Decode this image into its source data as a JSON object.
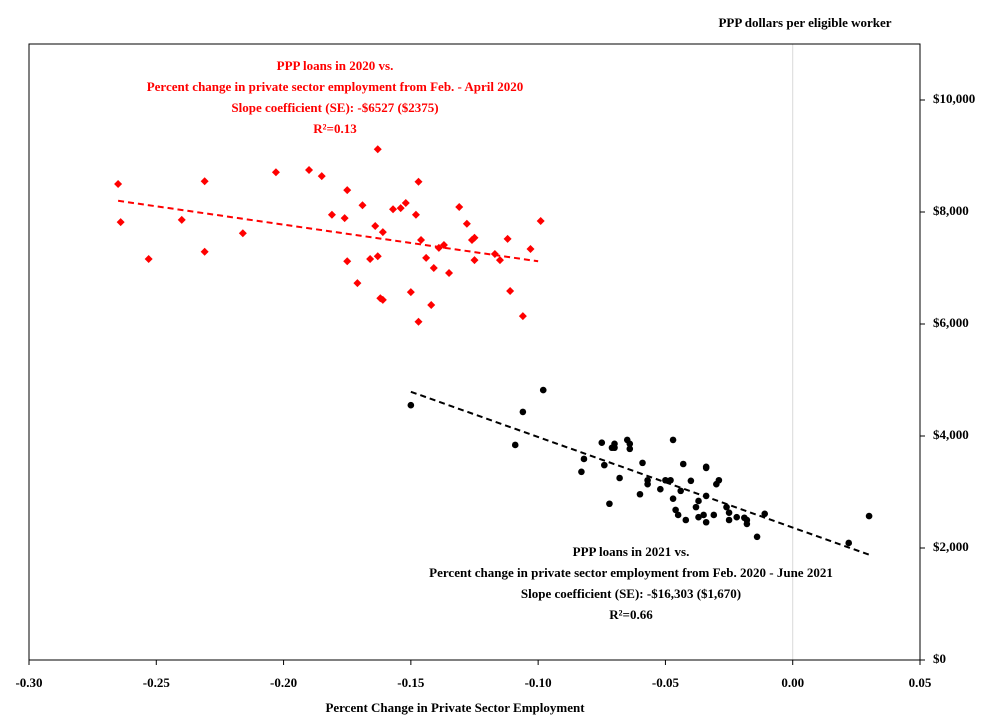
{
  "chart_data": {
    "type": "scatter",
    "title": "PPP dollars per eligible worker",
    "x_label": "Percent Change in Private Sector Employment",
    "xlim": [
      -0.3,
      0.05
    ],
    "xticks": [
      {
        "value": -0.3,
        "label": "-0.30"
      },
      {
        "value": -0.25,
        "label": "-0.25"
      },
      {
        "value": -0.2,
        "label": "-0.20"
      },
      {
        "value": -0.15,
        "label": "-0.15"
      },
      {
        "value": -0.1,
        "label": "-0.10"
      },
      {
        "value": -0.05,
        "label": "-0.05"
      },
      {
        "value": 0,
        "label": "0.00"
      },
      {
        "value": 0.05,
        "label": "0.05"
      }
    ],
    "ylim": [
      0,
      11000
    ],
    "yticks": [
      {
        "value": 0,
        "label": "$0"
      },
      {
        "value": 2000,
        "label": "$2,000"
      },
      {
        "value": 4000,
        "label": "$4,000"
      },
      {
        "value": 6000,
        "label": "$6,000"
      },
      {
        "value": 8000,
        "label": "$8,000"
      },
      {
        "value": 10000,
        "label": "$10,000"
      }
    ],
    "zero_line": true,
    "series": [
      {
        "color": "#ff0000",
        "marker": "diamond",
        "annotation": [
          "PPP loans in 2020 vs.",
          "Percent change in private sector employment from Feb. - April 2020",
          "Slope coefficient (SE): -$6527 ($2375)",
          "R²=0.13"
        ],
        "x": [
          -0.265,
          -0.264,
          -0.253,
          -0.24,
          -0.231,
          -0.231,
          -0.216,
          -0.203,
          -0.19,
          -0.185,
          -0.181,
          -0.176,
          -0.175,
          -0.169,
          -0.175,
          -0.171,
          -0.166,
          -0.163,
          -0.163,
          -0.164,
          -0.162,
          -0.161,
          -0.157,
          -0.154,
          -0.152,
          -0.15,
          -0.161,
          -0.148,
          -0.147,
          -0.146,
          -0.144,
          -0.147,
          -0.142,
          -0.141,
          -0.139,
          -0.137,
          -0.135,
          -0.131,
          -0.128,
          -0.126,
          -0.125,
          -0.117,
          -0.125,
          -0.115,
          -0.111,
          -0.112,
          -0.106,
          -0.103,
          -0.099
        ],
        "y": [
          8500,
          7820,
          7160,
          7860,
          8550,
          7290,
          7620,
          8710,
          8750,
          8640,
          7950,
          7890,
          8390,
          8120,
          7120,
          6730,
          7160,
          9120,
          7210,
          7750,
          6460,
          6430,
          8050,
          8070,
          8160,
          6570,
          7640,
          7950,
          8540,
          7500,
          7180,
          6040,
          6340,
          7000,
          7360,
          7410,
          6910,
          8090,
          7790,
          7500,
          7540,
          7250,
          7140,
          7140,
          6590,
          7520,
          6140,
          7340,
          7840
        ],
        "trendline": {
          "x": [
            -0.265,
            -0.1
          ],
          "y": [
            8200,
            7120
          ]
        }
      },
      {
        "color": "#000000",
        "marker": "circle",
        "annotation": [
          "PPP loans in 2021 vs.",
          "Percent change in private sector employment from Feb. 2020 - June 2021",
          "Slope coefficient (SE): -$16,303 ($1,670)",
          "R²=0.66"
        ],
        "x": [
          -0.15,
          -0.109,
          -0.106,
          -0.098,
          -0.083,
          -0.082,
          -0.075,
          -0.074,
          -0.072,
          -0.071,
          -0.07,
          -0.07,
          -0.068,
          -0.065,
          -0.064,
          -0.064,
          -0.06,
          -0.059,
          -0.057,
          -0.057,
          -0.052,
          -0.05,
          -0.048,
          -0.047,
          -0.047,
          -0.046,
          -0.045,
          -0.044,
          -0.043,
          -0.042,
          -0.04,
          -0.038,
          -0.037,
          -0.037,
          -0.035,
          -0.034,
          -0.034,
          -0.034,
          -0.034,
          -0.031,
          -0.03,
          -0.029,
          -0.026,
          -0.025,
          -0.025,
          -0.022,
          -0.019,
          -0.018,
          -0.018,
          -0.014,
          -0.011,
          0.022,
          0.03
        ],
        "y": [
          4550,
          3840,
          4430,
          4820,
          3360,
          3590,
          3880,
          3480,
          2790,
          3790,
          3860,
          3790,
          3250,
          3930,
          3860,
          3770,
          2960,
          3520,
          3210,
          3140,
          3050,
          3210,
          3210,
          3930,
          2880,
          2680,
          2590,
          3020,
          3500,
          2500,
          3200,
          2730,
          2550,
          2840,
          2590,
          2930,
          3450,
          3430,
          2460,
          2590,
          3140,
          3210,
          2730,
          2500,
          2630,
          2550,
          2540,
          2430,
          2500,
          2200,
          2610,
          2090,
          2570
        ],
        "trendline": {
          "x": [
            -0.15,
            0.03
          ],
          "y": [
            4790,
            1880
          ]
        }
      }
    ]
  }
}
